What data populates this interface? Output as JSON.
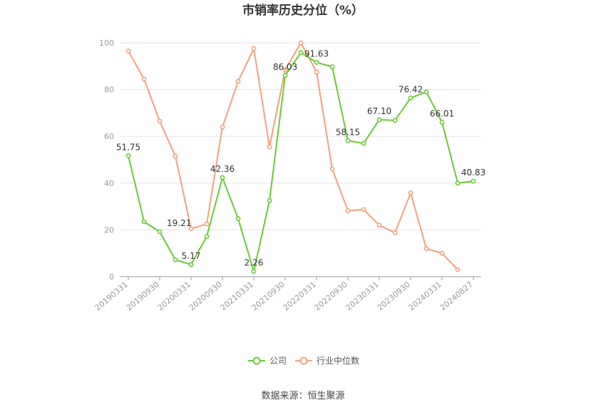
{
  "chart_data": {
    "type": "line",
    "title": "市销率历史分位（%）",
    "ylim": [
      0,
      100
    ],
    "yticks": [
      0,
      20,
      40,
      60,
      80,
      100
    ],
    "x_tick_labels": [
      "20190331",
      "20190930",
      "20200331",
      "20200930",
      "20210331",
      "20210930",
      "20220331",
      "20220930",
      "20230331",
      "20230930",
      "20240331",
      "20240827"
    ],
    "grid": "horizontal",
    "legend_position": "bottom",
    "series": [
      {
        "name": "公司",
        "color": "#66cc33",
        "values": [
          51.75,
          23.5,
          19.21,
          7.2,
          5.17,
          17.2,
          42.36,
          24.8,
          2.26,
          32.5,
          86.03,
          95.8,
          91.63,
          89.7,
          58.15,
          57.0,
          67.1,
          66.8,
          76.42,
          79.0,
          66.01,
          40.0,
          40.83
        ],
        "labels": {
          "0": "51.75",
          "2": "19.21",
          "4": "5.17",
          "6": "42.36",
          "8": "2.26",
          "10": "86.03",
          "12": "91.63",
          "14": "58.15",
          "16": "67.10",
          "18": "76.42",
          "20": "66.01",
          "22": "40.83"
        }
      },
      {
        "name": "行业中位数",
        "color": "#f4a07a",
        "values": [
          96.5,
          84.5,
          66.5,
          51.5,
          20.5,
          22.5,
          64.0,
          83.5,
          97.5,
          55.5,
          88.5,
          100.0,
          87.5,
          46.0,
          28.2,
          28.7,
          22.0,
          18.8,
          35.8,
          12.0,
          10.0,
          3.0,
          null
        ]
      }
    ]
  },
  "source_text": "数据来源：恒生聚源"
}
